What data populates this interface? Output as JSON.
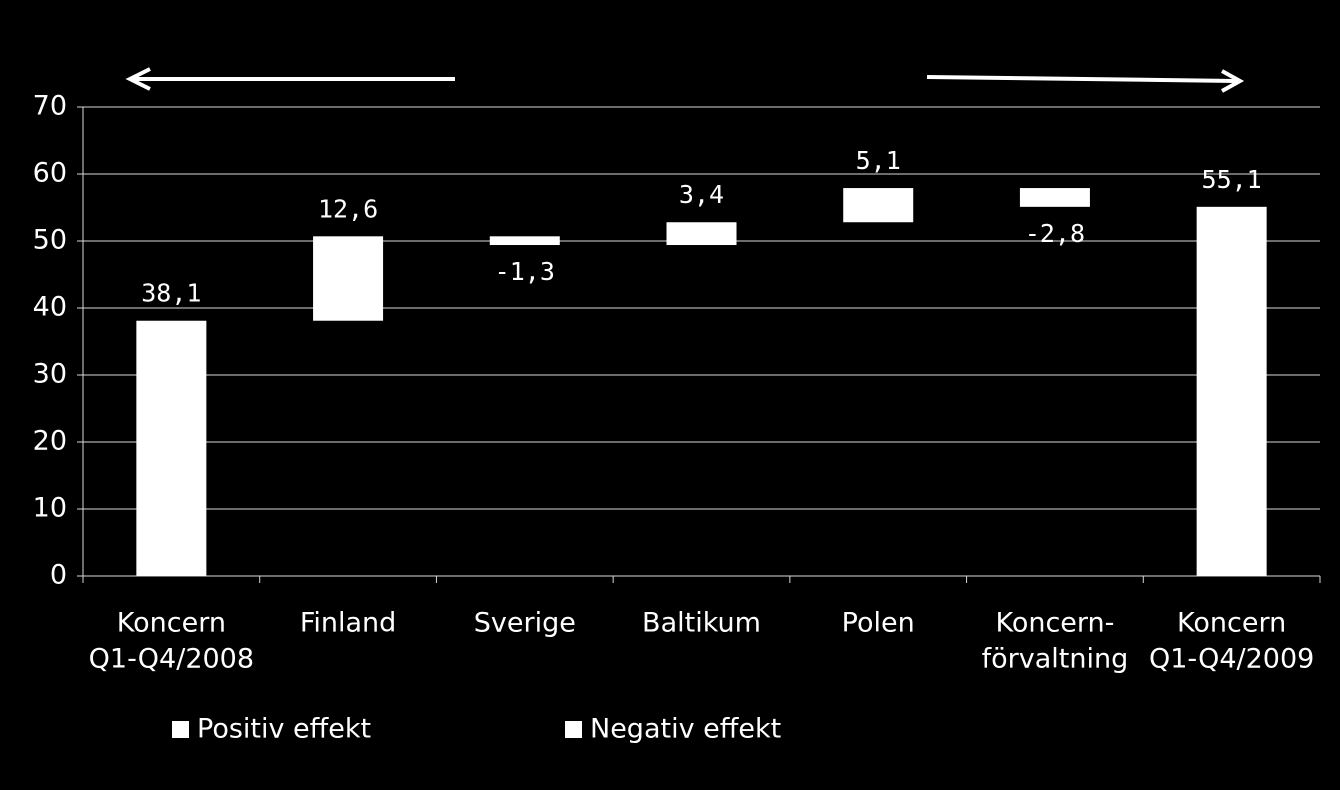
{
  "chart_data": {
    "type": "waterfall",
    "categories": [
      [
        "Koncern",
        "Q1-Q4/2008"
      ],
      [
        "Finland"
      ],
      [
        "Sverige"
      ],
      [
        "Baltikum"
      ],
      [
        "Polen"
      ],
      [
        "Koncern-",
        "förvaltning"
      ],
      [
        "Koncern",
        "Q1-Q4/2009"
      ]
    ],
    "values": [
      38.1,
      12.6,
      -1.3,
      3.4,
      5.1,
      -2.8,
      55.1
    ],
    "value_labels": [
      "38,1",
      "12,6",
      "-1,3",
      "3,4",
      "5,1",
      "-2,8",
      "55,1"
    ],
    "total_bars": [
      0,
      6
    ],
    "legend": [
      {
        "name": "Positiv effekt",
        "color": "#ffffff"
      },
      {
        "name": "Negativ effekt",
        "color": "#ffffff"
      }
    ],
    "ylim": [
      0,
      70
    ],
    "yticks": [
      0,
      10,
      20,
      30,
      40,
      50,
      60,
      70
    ],
    "grid": true
  }
}
